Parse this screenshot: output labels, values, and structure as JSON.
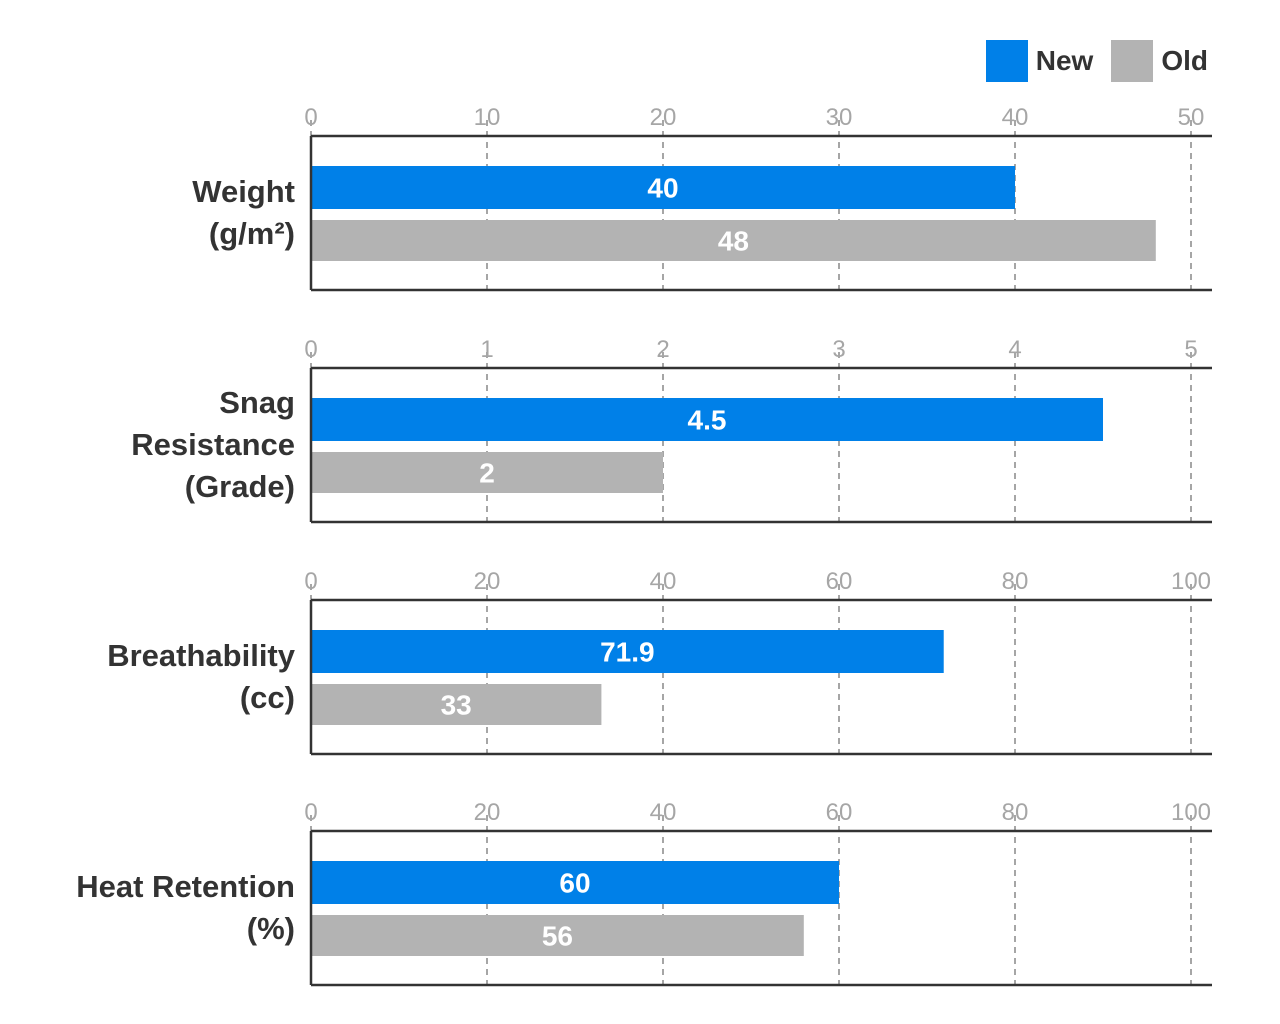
{
  "chart_data": {
    "type": "bar",
    "orientation": "horizontal",
    "legend": [
      {
        "name": "New",
        "color": "#0080E8"
      },
      {
        "name": "Old",
        "color": "#B3B3B3"
      }
    ],
    "legend_position": "top-right",
    "grid": "vertical dashed",
    "panels": [
      {
        "label_lines": [
          "Weight",
          "(g/m²)"
        ],
        "xlim": [
          0,
          50
        ],
        "ticks": [
          "0",
          "10",
          "20",
          "30",
          "40",
          "50"
        ],
        "series": [
          {
            "name": "New",
            "value": 40,
            "value_label": "40"
          },
          {
            "name": "Old",
            "value": 48,
            "value_label": "48"
          }
        ]
      },
      {
        "label_lines": [
          "Snag",
          "Resistance",
          "(Grade)"
        ],
        "xlim": [
          0,
          5
        ],
        "ticks": [
          "0",
          "1",
          "2",
          "3",
          "4",
          "5"
        ],
        "series": [
          {
            "name": "New",
            "value": 4.5,
            "value_label": "4.5"
          },
          {
            "name": "Old",
            "value": 2,
            "value_label": "2"
          }
        ]
      },
      {
        "label_lines": [
          "Breathability",
          "(cc)"
        ],
        "xlim": [
          0,
          100
        ],
        "ticks": [
          "0",
          "20",
          "40",
          "60",
          "80",
          "100"
        ],
        "series": [
          {
            "name": "New",
            "value": 71.9,
            "value_label": "71.9"
          },
          {
            "name": "Old",
            "value": 33,
            "value_label": "33"
          }
        ]
      },
      {
        "label_lines": [
          "Heat Retention",
          "(%)"
        ],
        "xlim": [
          0,
          100
        ],
        "ticks": [
          "0",
          "20",
          "40",
          "60",
          "80",
          "100"
        ],
        "series": [
          {
            "name": "New",
            "value": 60,
            "value_label": "60"
          },
          {
            "name": "Old",
            "value": 56,
            "value_label": "56"
          }
        ]
      }
    ]
  }
}
